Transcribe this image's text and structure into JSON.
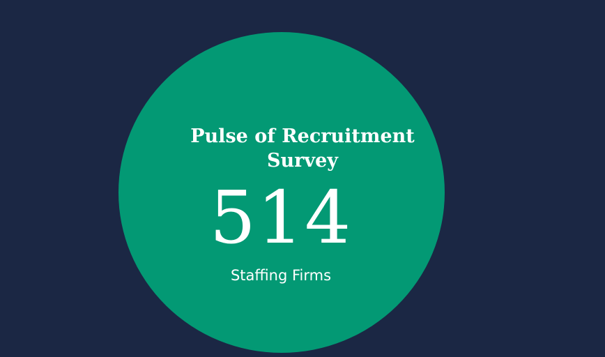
{
  "colors": {
    "background": "#1b2744",
    "circle": "#039974",
    "text": "#ffffff"
  },
  "stat": {
    "title_line1": "Pulse of Recruitment",
    "title_line2": "Survey",
    "value": "514",
    "label": "Staffing Firms"
  }
}
